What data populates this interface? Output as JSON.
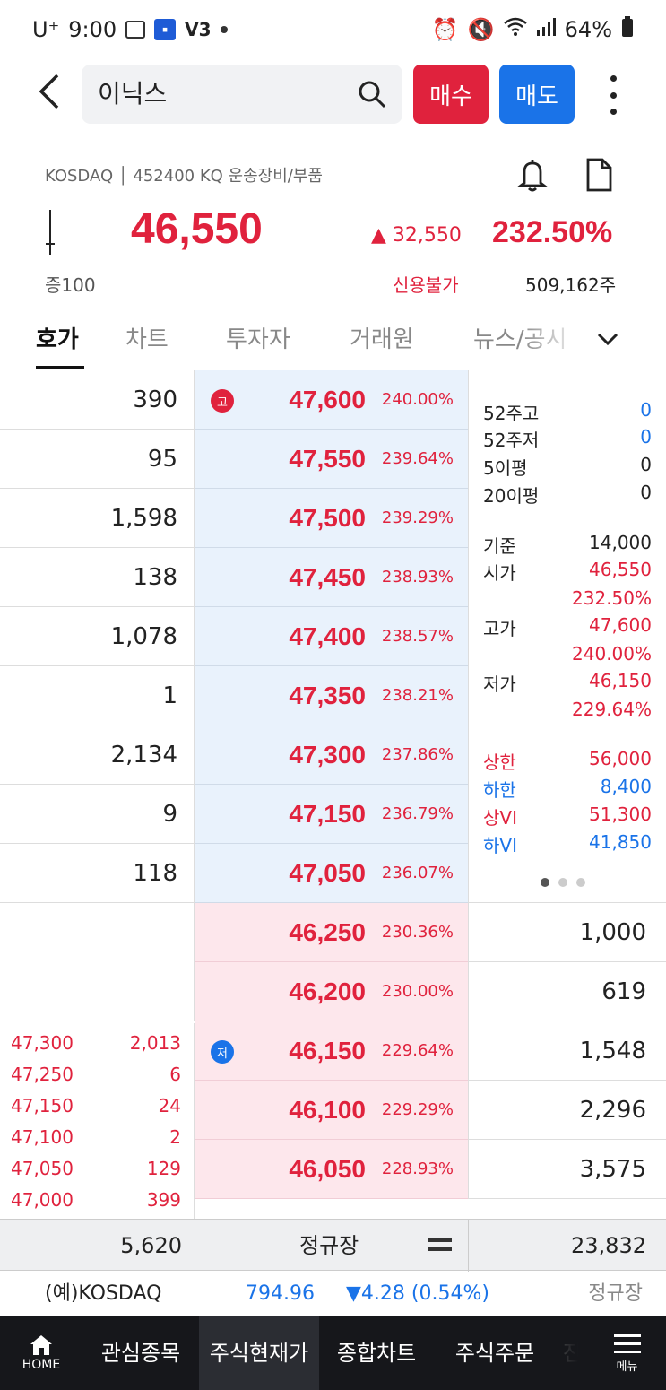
{
  "status_bar": {
    "carrier": "U⁺",
    "time": "9:00",
    "battery": "64%"
  },
  "header": {
    "stock_name": "이닉스",
    "buy_label": "매수",
    "sell_label": "매도"
  },
  "stock": {
    "info_line": "KOSDAQ │ 452400 KQ 운송장비/부품",
    "price": "46,550",
    "change": "▲ 32,550",
    "change_pct": "232.50%",
    "margin_rate": "증100",
    "credit": "신용불가",
    "volume": "509,162주"
  },
  "tabs": [
    "호가",
    "차트",
    "투자자",
    "거래원",
    "뉴스/공시"
  ],
  "order_book": {
    "asks": [
      {
        "qty": "390",
        "price": "47,600",
        "pct": "240.00%",
        "marker": "고"
      },
      {
        "qty": "95",
        "price": "47,550",
        "pct": "239.64%"
      },
      {
        "qty": "1,598",
        "price": "47,500",
        "pct": "239.29%"
      },
      {
        "qty": "138",
        "price": "47,450",
        "pct": "238.93%"
      },
      {
        "qty": "1,078",
        "price": "47,400",
        "pct": "238.57%"
      },
      {
        "qty": "1",
        "price": "47,350",
        "pct": "238.21%"
      },
      {
        "qty": "2,134",
        "price": "47,300",
        "pct": "237.86%"
      },
      {
        "qty": "9",
        "price": "47,150",
        "pct": "236.79%"
      },
      {
        "qty": "118",
        "price": "47,050",
        "pct": "236.07%"
      }
    ],
    "bids": [
      {
        "qty": "1,000",
        "price": "46,250",
        "pct": "230.36%"
      },
      {
        "qty": "619",
        "price": "46,200",
        "pct": "230.00%"
      },
      {
        "qty": "1,548",
        "price": "46,150",
        "pct": "229.64%",
        "marker": "저"
      },
      {
        "qty": "2,296",
        "price": "46,100",
        "pct": "229.29%"
      },
      {
        "qty": "3,575",
        "price": "46,050",
        "pct": "228.93%"
      }
    ]
  },
  "stats": {
    "w52_high_label": "52주고",
    "w52_high": "0",
    "w52_low_label": "52주저",
    "w52_low": "0",
    "ma5_label": "5이평",
    "ma5": "0",
    "ma20_label": "20이평",
    "ma20": "0",
    "base_label": "기준",
    "base": "14,000",
    "open_label": "시가",
    "open": "46,550",
    "open_pct": "232.50%",
    "high_label": "고가",
    "high": "47,600",
    "high_pct": "240.00%",
    "low_label": "저가",
    "low": "46,150",
    "low_pct": "229.64%",
    "upper_label": "상한",
    "upper": "56,000",
    "lower_label": "하한",
    "lower": "8,400",
    "upper_vi_label": "상VI",
    "upper_vi": "51,300",
    "lower_vi_label": "하VI",
    "lower_vi": "41,850"
  },
  "ticks": [
    {
      "price": "47,300",
      "qty": "2,013"
    },
    {
      "price": "47,250",
      "qty": "6"
    },
    {
      "price": "47,150",
      "qty": "24"
    },
    {
      "price": "47,100",
      "qty": "2"
    },
    {
      "price": "47,050",
      "qty": "129"
    },
    {
      "price": "47,000",
      "qty": "399"
    }
  ],
  "totals": {
    "ask_total": "5,620",
    "session": "정규장",
    "bid_total": "23,832"
  },
  "index_bar": {
    "name": "(예)KOSDAQ",
    "value": "794.96",
    "change": "▼4.28 (0.54%)",
    "session": "정규장"
  },
  "bottom_nav": {
    "home": "HOME",
    "items": [
      "관심종목",
      "주식현재가",
      "종합차트",
      "주식주문",
      "잔"
    ],
    "menu": "메뉴"
  },
  "colors": {
    "up": "#e0223d",
    "down": "#1a73e8",
    "ask_bg": "#e9f2fc",
    "bid_bg": "#fde7ec"
  }
}
